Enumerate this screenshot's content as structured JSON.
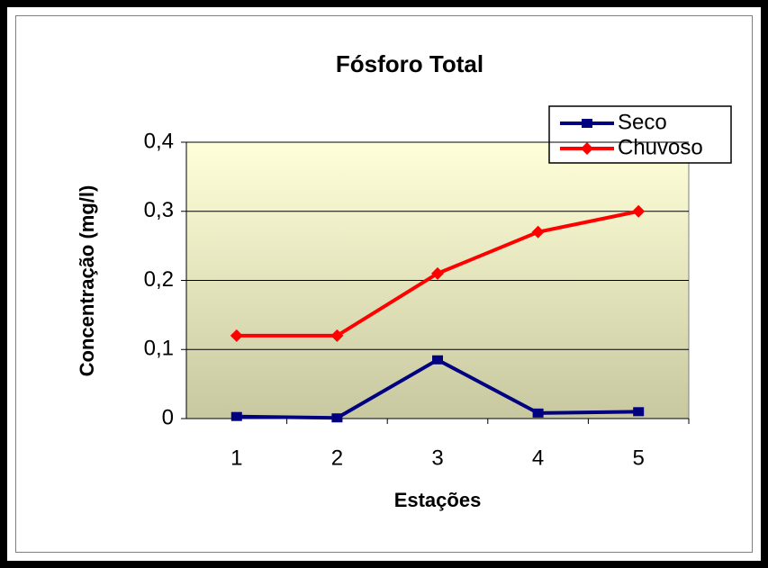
{
  "chart_data": {
    "type": "line",
    "title": "Fósforo Total",
    "x_label": "Estações",
    "y_label": "Concentração (mg/l)",
    "categories": [
      "1",
      "2",
      "3",
      "4",
      "5"
    ],
    "series": [
      {
        "name": "Seco",
        "color": "#000080",
        "marker": "square",
        "values": [
          0.003,
          0.001,
          0.085,
          0.008,
          0.01
        ]
      },
      {
        "name": "Chuvoso",
        "color": "#ff0000",
        "marker": "diamond",
        "values": [
          0.12,
          0.12,
          0.21,
          0.27,
          0.3
        ]
      }
    ],
    "ylim": [
      0,
      0.4
    ],
    "yticks": [
      0,
      {
        "value": 0.1,
        "label": "0,1"
      },
      {
        "value": 0.2,
        "label": "0,2"
      },
      {
        "value": 0.3,
        "label": "0,3"
      },
      {
        "value": 0.4,
        "label": "0,4"
      }
    ],
    "grid": true,
    "legend": "top-right"
  }
}
